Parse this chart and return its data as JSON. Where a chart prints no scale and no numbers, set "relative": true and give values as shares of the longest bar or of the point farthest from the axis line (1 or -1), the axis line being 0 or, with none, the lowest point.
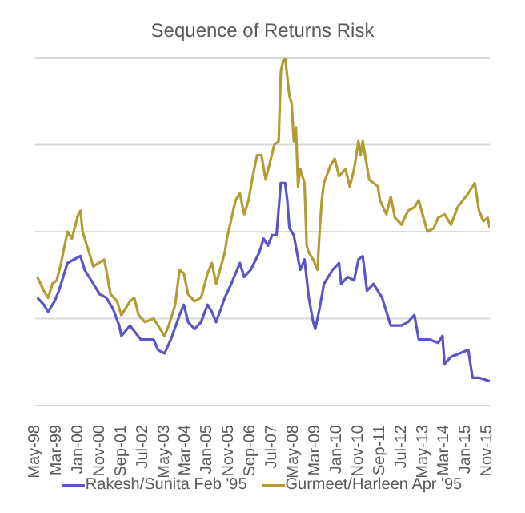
{
  "chart_data": {
    "type": "line",
    "title": "Sequence of Returns Risk",
    "relative": true,
    "grid": "y",
    "legend": "bottom",
    "marker": "none",
    "line_style": "solid",
    "xlim": [
      "1998-05",
      "2015-12"
    ],
    "xticks": [
      {
        "value": "1998-05",
        "label": "May-98"
      },
      {
        "value": "1999-03",
        "label": "Mar-99"
      },
      {
        "value": "2000-01",
        "label": "Jan-00"
      },
      {
        "value": "2000-11",
        "label": "Nov-00"
      },
      {
        "value": "2001-09",
        "label": "Sep-01"
      },
      {
        "value": "2002-07",
        "label": "Jul-02"
      },
      {
        "value": "2003-05",
        "label": "May-03"
      },
      {
        "value": "2004-03",
        "label": "Mar-04"
      },
      {
        "value": "2005-01",
        "label": "Jan-05"
      },
      {
        "value": "2005-11",
        "label": "Nov-05"
      },
      {
        "value": "2006-09",
        "label": "Sep-06"
      },
      {
        "value": "2007-07",
        "label": "Jul-07"
      },
      {
        "value": "2008-05",
        "label": "May-08"
      },
      {
        "value": "2009-03",
        "label": "Mar-09"
      },
      {
        "value": "2010-01",
        "label": "Jan-10"
      },
      {
        "value": "2010-11",
        "label": "Nov-10"
      },
      {
        "value": "2011-09",
        "label": "Sep-11"
      },
      {
        "value": "2012-07",
        "label": "Jul-12"
      },
      {
        "value": "2013-05",
        "label": "May-13"
      },
      {
        "value": "2014-03",
        "label": "Mar-14"
      },
      {
        "value": "2015-01",
        "label": "Jan-15"
      },
      {
        "value": "2015-11",
        "label": "Nov-15"
      }
    ],
    "series": [
      {
        "name": "Rakesh/Sunita Feb '95",
        "color": "#5a55c4",
        "x": [
          "1998-06",
          "1998-09",
          "1998-11",
          "1999-02",
          "1999-04",
          "1999-08",
          "1999-11",
          "2000-02",
          "2000-04",
          "2000-07",
          "2000-11",
          "2001-02",
          "2001-05",
          "2001-08",
          "2001-09",
          "2002-01",
          "2002-06",
          "2002-09",
          "2002-12",
          "2003-02",
          "2003-05",
          "2003-08",
          "2003-12",
          "2004-02",
          "2004-04",
          "2004-07",
          "2004-10",
          "2005-01",
          "2005-03",
          "2005-05",
          "2005-09",
          "2005-12",
          "2006-04",
          "2006-06",
          "2006-09",
          "2007-01",
          "2007-03",
          "2007-05",
          "2007-07",
          "2007-09",
          "2007-11",
          "2008-01",
          "2008-02",
          "2008-03",
          "2008-05",
          "2008-08",
          "2008-10",
          "2008-12",
          "2009-02",
          "2009-03",
          "2009-05",
          "2009-07",
          "2009-11",
          "2010-02",
          "2010-03",
          "2010-06",
          "2010-09",
          "2010-11",
          "2011-01",
          "2011-03",
          "2011-06",
          "2011-10",
          "2012-02",
          "2012-07",
          "2012-10",
          "2013-01",
          "2013-03",
          "2013-08",
          "2013-12",
          "2014-02",
          "2014-03",
          "2014-06",
          "2015-02",
          "2015-04",
          "2015-07",
          "2015-12"
        ],
        "values": [
          0.31,
          0.29,
          0.27,
          0.3,
          0.33,
          0.41,
          0.42,
          0.43,
          0.39,
          0.36,
          0.32,
          0.31,
          0.28,
          0.23,
          0.2,
          0.23,
          0.19,
          0.19,
          0.19,
          0.16,
          0.15,
          0.19,
          0.26,
          0.29,
          0.24,
          0.22,
          0.24,
          0.29,
          0.27,
          0.24,
          0.31,
          0.35,
          0.41,
          0.37,
          0.39,
          0.44,
          0.48,
          0.46,
          0.49,
          0.49,
          0.64,
          0.64,
          0.59,
          0.51,
          0.49,
          0.39,
          0.42,
          0.31,
          0.24,
          0.22,
          0.28,
          0.35,
          0.39,
          0.41,
          0.35,
          0.37,
          0.36,
          0.42,
          0.43,
          0.33,
          0.35,
          0.31,
          0.23,
          0.23,
          0.24,
          0.26,
          0.19,
          0.19,
          0.18,
          0.2,
          0.12,
          0.14,
          0.16,
          0.08,
          0.08,
          0.07
        ]
      },
      {
        "name": "Gurmeet/Harleen Apr '95",
        "color": "#b39c34",
        "x": [
          "1998-06",
          "1998-09",
          "1998-11",
          "1999-01",
          "1999-03",
          "1999-05",
          "1999-08",
          "1999-10",
          "2000-01",
          "2000-02",
          "2000-03",
          "2000-05",
          "2000-08",
          "2001-01",
          "2001-02",
          "2001-04",
          "2001-07",
          "2001-09",
          "2002-01",
          "2002-03",
          "2002-05",
          "2002-08",
          "2002-12",
          "2003-02",
          "2003-05",
          "2003-07",
          "2003-10",
          "2003-12",
          "2004-02",
          "2004-04",
          "2004-07",
          "2004-10",
          "2005-01",
          "2005-03",
          "2005-05",
          "2005-09",
          "2005-10",
          "2006-02",
          "2006-04",
          "2006-06",
          "2006-08",
          "2006-10",
          "2006-12",
          "2007-02",
          "2007-04",
          "2007-06",
          "2007-08",
          "2007-10",
          "2007-11",
          "2007-12",
          "2008-01",
          "2008-03",
          "2008-04",
          "2008-05",
          "2008-06",
          "2008-07",
          "2008-08",
          "2008-10",
          "2008-11",
          "2008-12",
          "2009-02",
          "2009-04",
          "2009-05",
          "2009-06",
          "2009-07",
          "2009-10",
          "2009-12",
          "2010-02",
          "2010-05",
          "2010-07",
          "2010-09",
          "2010-11",
          "2010-12",
          "2011-01",
          "2011-04",
          "2011-08",
          "2011-09",
          "2011-12",
          "2012-02",
          "2012-04",
          "2012-07",
          "2012-10",
          "2013-01",
          "2013-03",
          "2013-07",
          "2013-10",
          "2013-12",
          "2014-03",
          "2014-06",
          "2014-09",
          "2015-02",
          "2015-05",
          "2015-07",
          "2015-09",
          "2015-11",
          "2015-12"
        ],
        "values": [
          0.37,
          0.33,
          0.31,
          0.35,
          0.36,
          0.41,
          0.5,
          0.48,
          0.55,
          0.56,
          0.5,
          0.46,
          0.4,
          0.42,
          0.39,
          0.32,
          0.3,
          0.26,
          0.3,
          0.31,
          0.26,
          0.24,
          0.25,
          0.23,
          0.2,
          0.23,
          0.29,
          0.39,
          0.38,
          0.32,
          0.3,
          0.31,
          0.38,
          0.41,
          0.35,
          0.44,
          0.48,
          0.59,
          0.61,
          0.55,
          0.59,
          0.66,
          0.72,
          0.72,
          0.65,
          0.7,
          0.75,
          0.76,
          0.96,
          0.99,
          1.0,
          0.89,
          0.87,
          0.76,
          0.8,
          0.63,
          0.68,
          0.64,
          0.46,
          0.44,
          0.42,
          0.39,
          0.5,
          0.59,
          0.64,
          0.69,
          0.71,
          0.66,
          0.68,
          0.63,
          0.68,
          0.76,
          0.72,
          0.76,
          0.65,
          0.63,
          0.59,
          0.55,
          0.6,
          0.54,
          0.52,
          0.56,
          0.57,
          0.59,
          0.5,
          0.51,
          0.54,
          0.55,
          0.52,
          0.57,
          0.61,
          0.64,
          0.56,
          0.53,
          0.54,
          0.51
        ]
      }
    ]
  }
}
